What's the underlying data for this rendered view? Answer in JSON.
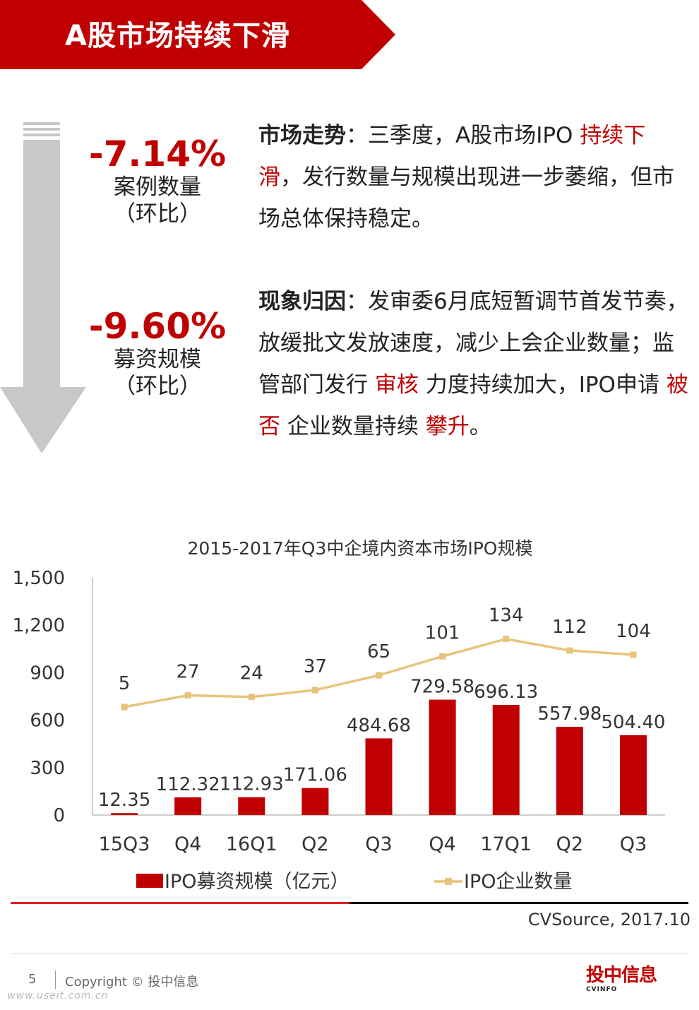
{
  "banner": {
    "title": "A股市场持续下滑",
    "color": "#c00000"
  },
  "stats": [
    {
      "value": "-7.14%",
      "label": "案例数量",
      "sub": "（环比）"
    },
    {
      "value": "-9.60%",
      "label": "募资规模",
      "sub": "（环比）"
    }
  ],
  "paragraph1": {
    "key": "市场走势",
    "sep": "：",
    "t1": "三季度，A股市场IPO ",
    "h1": "持续下滑",
    "t2": "，发行数量与规模出现进一步萎缩，但市场总体保持稳定。"
  },
  "paragraph2": {
    "key": "现象归因",
    "sep": "：",
    "t1": "发审委6月底短暂调节首发节奏，放缓批文发放速度，减少上会企业数量；监管部门发行 ",
    "h1": "审核",
    "t2": " 力度持续加大，IPO申请 ",
    "h2": "被否",
    "t3": " 企业数量持续 ",
    "h3": "攀升",
    "t4": "。"
  },
  "chart_data": {
    "type": "bar",
    "title": "2015-2017年Q3中企境内资本市场IPO规模",
    "categories": [
      "15Q3",
      "Q4",
      "16Q1",
      "Q2",
      "Q3",
      "Q4",
      "17Q1",
      "Q2",
      "Q3"
    ],
    "yticks": [
      "0",
      "300",
      "600",
      "900",
      "1,200",
      "1,500"
    ],
    "ylim": [
      0,
      1500
    ],
    "series": [
      {
        "name": "IPO募资规模（亿元）",
        "kind": "bar",
        "color": "#c00000",
        "values": [
          12.35,
          112.32,
          112.93,
          171.06,
          484.68,
          729.58,
          696.13,
          557.98,
          504.4
        ],
        "labels": [
          "12.35",
          "112.32",
          "112.93",
          "171.06",
          "484.68",
          "729.58",
          "696.13",
          "557.98",
          "504.40"
        ]
      },
      {
        "name": "IPO企业数量",
        "kind": "line",
        "color": "#e8c47a",
        "values": [
          5,
          27,
          24,
          37,
          65,
          101,
          134,
          112,
          104
        ],
        "labels": [
          "5",
          "27",
          "24",
          "37",
          "65",
          "101",
          "134",
          "112",
          "104"
        ]
      }
    ],
    "legend_position": "bottom"
  },
  "source": "CVSource, 2017.10",
  "footer": {
    "page": "5",
    "copyright": "Copyright © 投中信息",
    "logo_text": "投中信息",
    "logo_sub": "CVINFO",
    "watermark": "www.useit.com.cn"
  }
}
